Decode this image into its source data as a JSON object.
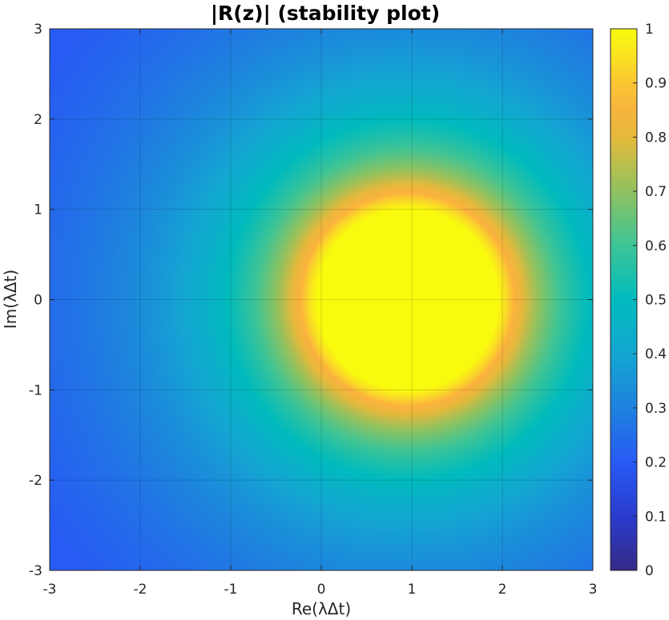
{
  "chart_data": {
    "type": "heatmap",
    "title": "|R(z)| (stability plot)",
    "xlabel": "Re(λΔt)",
    "ylabel": "Im(λΔt)",
    "xlim": [
      -3,
      3
    ],
    "ylim": [
      -3,
      3
    ],
    "xticks": [
      "-3",
      "-2",
      "-1",
      "0",
      "1",
      "2",
      "3"
    ],
    "yticks": [
      "-3",
      "-2",
      "-1",
      "0",
      "1",
      "2",
      "3"
    ],
    "grid": true,
    "colormap": "parula",
    "colorbar": {
      "range": [
        0,
        1
      ],
      "ticks": [
        "0",
        "0.1",
        "0.2",
        "0.3",
        "0.4",
        "0.5",
        "0.6",
        "0.7",
        "0.8",
        "0.9",
        "1"
      ]
    },
    "field_description": "Magnitude |R(z)| clipped to [0,1]; saturated region is a disc centred near z = 1 with radius about 1, decaying outward to about 0.2 at the top-left corner.",
    "samples": [
      {
        "re": 1.0,
        "im": 0.0,
        "value": 1.0
      },
      {
        "re": 0.0,
        "im": 0.0,
        "value": 1.0
      },
      {
        "re": 1.0,
        "im": 1.2,
        "value": 0.85
      },
      {
        "re": -0.5,
        "im": 0.0,
        "value": 0.6
      },
      {
        "re": 1.0,
        "im": 2.0,
        "value": 0.48
      },
      {
        "re": -2.0,
        "im": 0.0,
        "value": 0.3
      },
      {
        "re": -3.0,
        "im": 3.0,
        "value": 0.22
      }
    ]
  }
}
